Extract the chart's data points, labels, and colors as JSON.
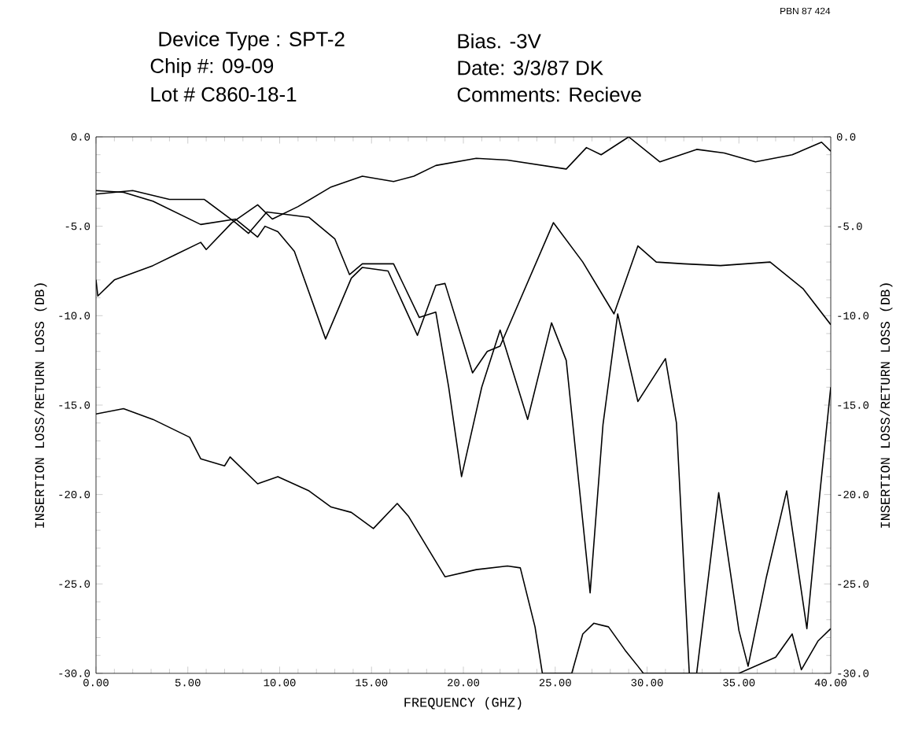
{
  "chart_data": {
    "type": "line",
    "xlabel": "FREQUENCY  (GHZ)",
    "ylabel": "INSERTION LOSS/RETURN LOSS  (DB)",
    "y2label": "INSERTION LOSS/RETURN LOSS  (DB)",
    "annotations": [
      "Device Type :  SPT-2",
      "Chip #:  09-09",
      "Lot #  C860-18-1",
      "Bias.  -3V",
      "Date:  3/3/87 DK",
      "Comments:  Recieve",
      "PBN 87 424"
    ],
    "xlim": [
      0,
      40
    ],
    "ylim": [
      -30,
      0
    ],
    "y2lim": [
      -30,
      0
    ],
    "xticks": [
      {
        "value": 0,
        "label": "0.00"
      },
      {
        "value": 5,
        "label": "5.00"
      },
      {
        "value": 10,
        "label": "10.00"
      },
      {
        "value": 15,
        "label": "15.00"
      },
      {
        "value": 20,
        "label": "20.00"
      },
      {
        "value": 25,
        "label": "25.00"
      },
      {
        "value": 30,
        "label": "30.00"
      },
      {
        "value": 35,
        "label": "35.00"
      },
      {
        "value": 40,
        "label": "40.00"
      }
    ],
    "yticks": [
      {
        "value": -30,
        "label": "-30.0"
      },
      {
        "value": -25,
        "label": "-25.0"
      },
      {
        "value": -20,
        "label": "-20.0"
      },
      {
        "value": -15,
        "label": "-15.0"
      },
      {
        "value": -10,
        "label": "-10.0"
      },
      {
        "value": -5,
        "label": "-5.0"
      },
      {
        "value": 0,
        "label": "0.0"
      }
    ],
    "y2ticks": [
      {
        "value": -30,
        "label": "-30.0"
      },
      {
        "value": -25,
        "label": "-25.0"
      },
      {
        "value": -20,
        "label": "-20.0"
      },
      {
        "value": -15,
        "label": "-15.0"
      },
      {
        "value": -10,
        "label": "-10.0"
      },
      {
        "value": -5,
        "label": "-5.0"
      },
      {
        "value": 0,
        "label": "0.0"
      }
    ],
    "marker": "none",
    "line_style": "solid",
    "series": [
      {
        "color": "#000000",
        "x": [
          0,
          2,
          4,
          5.9,
          7.6,
          8.3,
          9.3,
          11.6,
          13.0,
          13.8,
          14.5,
          16.2,
          17.6,
          18.5,
          19.2,
          19.9,
          21.0,
          22.0,
          23.5,
          24.8,
          25.6,
          26.2,
          26.9,
          27.6,
          28.4,
          29.5,
          31.0,
          31.6,
          32.3,
          32.7,
          33.9,
          35.0,
          35.5,
          36.5,
          37.6,
          38.7,
          39.4,
          40
        ],
        "values": [
          -3.2,
          -3.0,
          -3.5,
          -3.5,
          -4.8,
          -5.4,
          -4.2,
          -4.5,
          -5.7,
          -7.7,
          -7.1,
          -7.1,
          -10.1,
          -9.8,
          -14,
          -19.0,
          -14,
          -10.8,
          -15.8,
          -10.4,
          -12.5,
          -18.5,
          -25.5,
          -16.1,
          -9.9,
          -14.8,
          -12.4,
          -16,
          -30,
          -30,
          -19.9,
          -27.6,
          -29.6,
          -24.6,
          -19.8,
          -27.5,
          -20,
          -14
        ]
      },
      {
        "color": "#000000",
        "x": [
          0,
          1.5,
          3.1,
          5.7,
          7.6,
          8.8,
          9.2,
          9.9,
          10.8,
          12.5,
          13.9,
          14.5,
          15.9,
          17.5,
          18.5,
          19.0,
          20.5,
          21.3,
          22.0,
          24.9,
          26.5,
          28.2,
          29.5,
          30.5,
          32,
          34,
          36.7,
          38.5,
          40
        ],
        "values": [
          -3.0,
          -3.1,
          -3.6,
          -4.9,
          -4.6,
          -5.6,
          -5.0,
          -5.3,
          -6.4,
          -11.3,
          -7.9,
          -7.3,
          -7.5,
          -11.1,
          -8.3,
          -8.2,
          -13.2,
          -12.0,
          -11.7,
          -4.8,
          -7.0,
          -9.9,
          -6.1,
          -7.0,
          -7.1,
          -7.2,
          -7.0,
          -8.5,
          -10.5
        ]
      },
      {
        "color": "#000000",
        "x": [
          0,
          0.1,
          1.0,
          3.1,
          4.3,
          5.7,
          6.0,
          7.4,
          8.8,
          9.6,
          11.0,
          12.8,
          14.5,
          16.2,
          17.3,
          18.5,
          20.7,
          22.4,
          25.6,
          26.7,
          27.5,
          29.0,
          30.7,
          32.7,
          34.2,
          35.9,
          37.9,
          39.5,
          40
        ],
        "values": [
          -8.0,
          -8.9,
          -8.0,
          -7.2,
          -6.6,
          -5.9,
          -6.3,
          -4.8,
          -3.8,
          -4.6,
          -3.9,
          -2.8,
          -2.2,
          -2.5,
          -2.2,
          -1.6,
          -1.2,
          -1.3,
          -1.8,
          -0.6,
          -1.0,
          0,
          -1.4,
          -0.7,
          -0.9,
          -1.4,
          -1.0,
          -0.3,
          -0.8
        ]
      },
      {
        "color": "#000000",
        "x": [
          0,
          1.5,
          3.1,
          5.1,
          5.7,
          7.0,
          7.3,
          8.8,
          9.9,
          11.6,
          12.8,
          13.9,
          15.1,
          16.4,
          17.0,
          19.0,
          20.7,
          22.4,
          23.1,
          23.9,
          24.3,
          25.9,
          26.5,
          27.1,
          27.9,
          28.8,
          29.5,
          29.8,
          35,
          37.0,
          37.9,
          38.4,
          39.3,
          40
        ],
        "values": [
          -15.5,
          -15.2,
          -15.8,
          -16.8,
          -18.0,
          -18.4,
          -17.9,
          -19.4,
          -19.0,
          -19.8,
          -20.7,
          -21.0,
          -21.9,
          -20.5,
          -21.2,
          -24.6,
          -24.2,
          -24.0,
          -24.1,
          -27.4,
          -30,
          -30,
          -27.8,
          -27.2,
          -27.4,
          -28.7,
          -29.6,
          -30,
          -30,
          -29.1,
          -27.8,
          -29.8,
          -28.2,
          -27.5
        ]
      }
    ]
  }
}
